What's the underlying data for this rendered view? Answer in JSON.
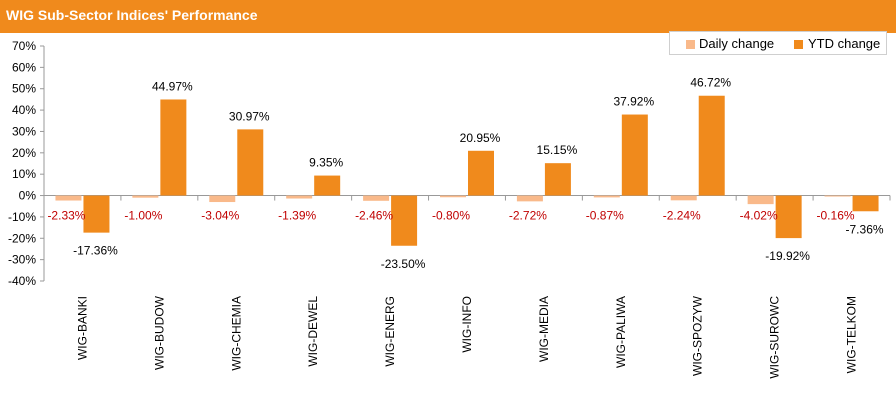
{
  "header": {
    "title": "WIG Sub-Sector Indices' Performance"
  },
  "legend": {
    "daily_label": "Daily change",
    "ytd_label": "YTD change"
  },
  "chart_data": {
    "type": "bar",
    "title": "WIG Sub-Sector Indices' Performance",
    "categories": [
      "WIG-BANKI",
      "WIG-BUDOW",
      "WIG-CHEMIA",
      "WIG-DEWEL",
      "WIG-ENERG",
      "WIG-INFO",
      "WIG-MEDIA",
      "WIG-PALIWA",
      "WIG-SPOZYW",
      "WIG-SUROWC",
      "WIG-TELKOM"
    ],
    "series": [
      {
        "name": "Daily change",
        "color": "#f9b98a",
        "values": [
          -2.33,
          -1.0,
          -3.04,
          -1.39,
          -2.46,
          -0.8,
          -2.72,
          -0.87,
          -2.24,
          -4.02,
          -0.16
        ],
        "labels": [
          "-2.33%",
          "-1.00%",
          "-3.04%",
          "-1.39%",
          "-2.46%",
          "-0.80%",
          "-2.72%",
          "-0.87%",
          "-2.24%",
          "-4.02%",
          "-0.16%"
        ]
      },
      {
        "name": "YTD change",
        "color": "#f08a1c",
        "values": [
          -17.36,
          44.97,
          30.97,
          9.35,
          -23.5,
          20.95,
          15.15,
          37.92,
          46.72,
          -19.92,
          -7.36
        ],
        "labels": [
          "-17.36%",
          "44.97%",
          "30.97%",
          "9.35%",
          "-23.50%",
          "20.95%",
          "15.15%",
          "37.92%",
          "46.72%",
          "-19.92%",
          "-7.36%"
        ]
      }
    ],
    "ylim": [
      -40,
      70
    ],
    "yticks": [
      70,
      60,
      50,
      40,
      30,
      20,
      10,
      0,
      -10,
      -20,
      -30,
      -40
    ],
    "ytick_labels": [
      "70%",
      "60%",
      "50%",
      "40%",
      "30%",
      "20%",
      "10%",
      "0%",
      "-10%",
      "-20%",
      "-30%",
      "-40%"
    ],
    "grid": false,
    "legend_position": "top-right",
    "daily_label_color": "#c00000",
    "ytd_label_color": "#000000"
  }
}
